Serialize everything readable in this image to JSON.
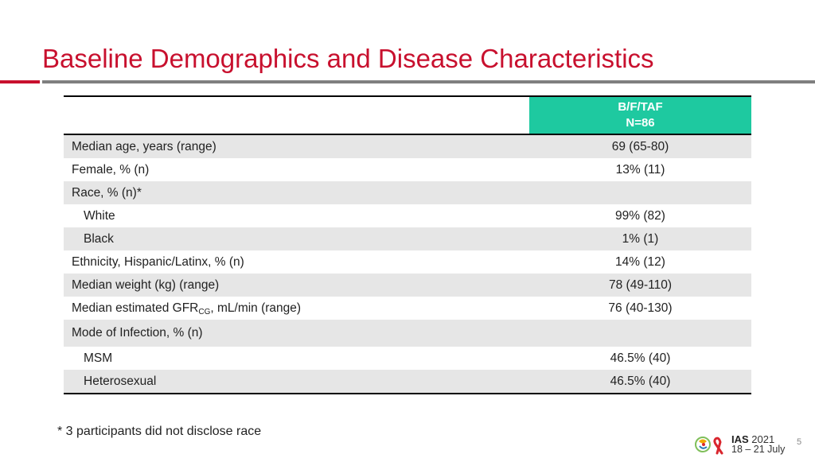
{
  "title": "Baseline Demographics and Disease Characteristics",
  "table": {
    "header": {
      "line1": "B/F/TAF",
      "line2": "N=86"
    },
    "rows": [
      {
        "label": "Median age, years (range)",
        "value": "69 (65-80)"
      },
      {
        "label": "Female, % (n)",
        "value": "13% (11)"
      },
      {
        "label": "Race, % (n)*",
        "value": ""
      },
      {
        "label": "White",
        "value": "99% (82)"
      },
      {
        "label": "Black",
        "value": "1% (1)"
      },
      {
        "label": "Ethnicity, Hispanic/Latinx, % (n)",
        "value": "14% (12)"
      },
      {
        "label": "Median weight (kg) (range)",
        "value": "78 (49-110)"
      },
      {
        "label_pre": "Median estimated GFR",
        "label_sub": "CG",
        "label_post": ", mL/min (range)",
        "value": "76 (40-130)"
      },
      {
        "label": "Mode of Infection, % (n)",
        "value": ""
      },
      {
        "label": "MSM",
        "value": "46.5% (40)"
      },
      {
        "label": "Heterosexual",
        "value": "46.5% (40)"
      }
    ]
  },
  "footnote": "* 3 participants did not disclose race",
  "logo": {
    "name": "IAS",
    "year": "2021",
    "dates": "18 – 21 July"
  },
  "page_number": "5",
  "colors": {
    "title": "#c8102e",
    "header_bg": "#1ec9a0",
    "row_shade": "#e6e6e6"
  }
}
